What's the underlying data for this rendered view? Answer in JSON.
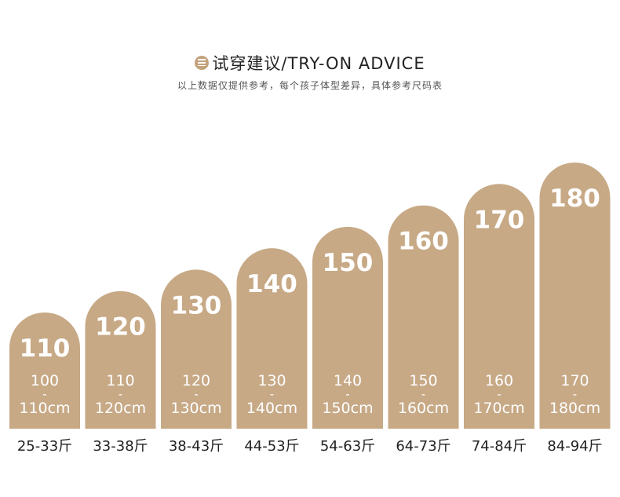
{
  "header": {
    "title": "试穿建议/TRY-ON ADVICE",
    "subtitle": "以上数据仅提供参考，每个孩子体型差异，具体参考尺码表"
  },
  "colors": {
    "bar": "#c7a986",
    "icon": "#c4a27c",
    "text": "#222222"
  },
  "chart_data": {
    "type": "bar",
    "categories": [
      "110",
      "120",
      "130",
      "140",
      "150",
      "160",
      "170",
      "180"
    ],
    "values": [
      110,
      120,
      130,
      140,
      150,
      160,
      170,
      180
    ],
    "height_ranges": [
      {
        "from": "100",
        "sep": "-",
        "to": "110cm"
      },
      {
        "from": "110",
        "sep": "-",
        "to": "120cm"
      },
      {
        "from": "120",
        "sep": "-",
        "to": "130cm"
      },
      {
        "from": "130",
        "sep": "-",
        "to": "140cm"
      },
      {
        "from": "140",
        "sep": "-",
        "to": "150cm"
      },
      {
        "from": "150",
        "sep": "-",
        "to": "160cm"
      },
      {
        "from": "160",
        "sep": "-",
        "to": "170cm"
      },
      {
        "from": "170",
        "sep": "-",
        "to": "180cm"
      }
    ],
    "weights": [
      "25-33斤",
      "33-38斤",
      "38-43斤",
      "44-53斤",
      "54-63斤",
      "64-73斤",
      "74-84斤",
      "84-94斤"
    ],
    "title": "",
    "xlabel": "",
    "ylabel": "",
    "grid": false
  }
}
